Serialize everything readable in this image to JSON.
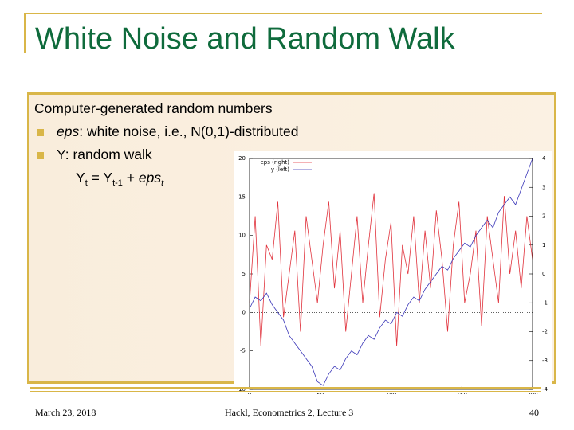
{
  "header": {
    "title": "White Noise and Random Walk"
  },
  "body": {
    "intro": "Computer-generated random numbers",
    "bullets": [
      {
        "term": "eps",
        "text": ": white noise, i.e., N(0,1)-distributed"
      },
      {
        "term": "Y",
        "text": ": random walk"
      }
    ],
    "formula": [
      {
        "text": "Y",
        "style": "normal"
      },
      {
        "text": "t",
        "style": "sub"
      },
      {
        "text": " = Y",
        "style": "normal"
      },
      {
        "text": "t-1",
        "style": "sub"
      },
      {
        "text": " + ",
        "style": "normal"
      },
      {
        "text": "eps",
        "style": "italic"
      },
      {
        "text": "t",
        "style": "sub-italic"
      }
    ]
  },
  "chart_data": {
    "type": "line",
    "x": [
      0,
      4,
      8,
      12,
      16,
      20,
      24,
      28,
      32,
      36,
      40,
      44,
      48,
      52,
      56,
      60,
      64,
      68,
      72,
      76,
      80,
      84,
      88,
      92,
      96,
      100,
      104,
      108,
      112,
      116,
      120,
      124,
      128,
      132,
      136,
      140,
      144,
      148,
      152,
      156,
      160,
      164,
      168,
      172,
      176,
      180,
      184,
      188,
      192,
      196,
      200
    ],
    "series": [
      {
        "name": "eps (right)",
        "color": "#e0303a",
        "axis": "y2",
        "values": [
          -1,
          2,
          -2.5,
          1,
          0.5,
          2.5,
          -1.5,
          0,
          1.5,
          -2,
          2,
          0.5,
          -1,
          1,
          2.5,
          -0.5,
          1.5,
          -2,
          0,
          2,
          -1,
          1,
          2.8,
          -1.5,
          0.5,
          1.8,
          -2.5,
          1,
          0,
          2,
          -1,
          1.5,
          -0.5,
          2.2,
          0.5,
          -2,
          1,
          2.5,
          -1,
          0,
          1.5,
          -1.8,
          2,
          0.5,
          -1,
          2.7,
          0,
          1.5,
          -0.5,
          2,
          0.5
        ]
      },
      {
        "name": "y (left)",
        "color": "#3a36b8",
        "values": [
          0.5,
          2,
          1.5,
          2.5,
          1,
          0,
          -1,
          -3,
          -4,
          -5,
          -6,
          -7,
          -9,
          -9.5,
          -8,
          -7,
          -7.5,
          -6,
          -5,
          -5.5,
          -4,
          -3,
          -3.5,
          -2,
          -1,
          -1.5,
          0,
          -0.5,
          1,
          2,
          1.5,
          3,
          4,
          5,
          6,
          5.5,
          7,
          8,
          9,
          8.5,
          10,
          11,
          12,
          11,
          13,
          14,
          15,
          14,
          16,
          18,
          20
        ]
      }
    ],
    "xlim": [
      0,
      200
    ],
    "xticks": [
      0,
      50,
      100,
      150,
      200
    ],
    "ylim": [
      -10,
      20
    ],
    "yticks": [
      -10,
      -5,
      0,
      5,
      10,
      15,
      20
    ],
    "y2lim": [
      -4,
      4
    ],
    "y2ticks": [
      -4,
      -3,
      -2,
      -1,
      0,
      1,
      2,
      3,
      4
    ],
    "zero_line": true
  },
  "footer": {
    "date": "March 23, 2018",
    "source": "Hackl, Econometrics 2, Lecture 3",
    "page": "40"
  }
}
